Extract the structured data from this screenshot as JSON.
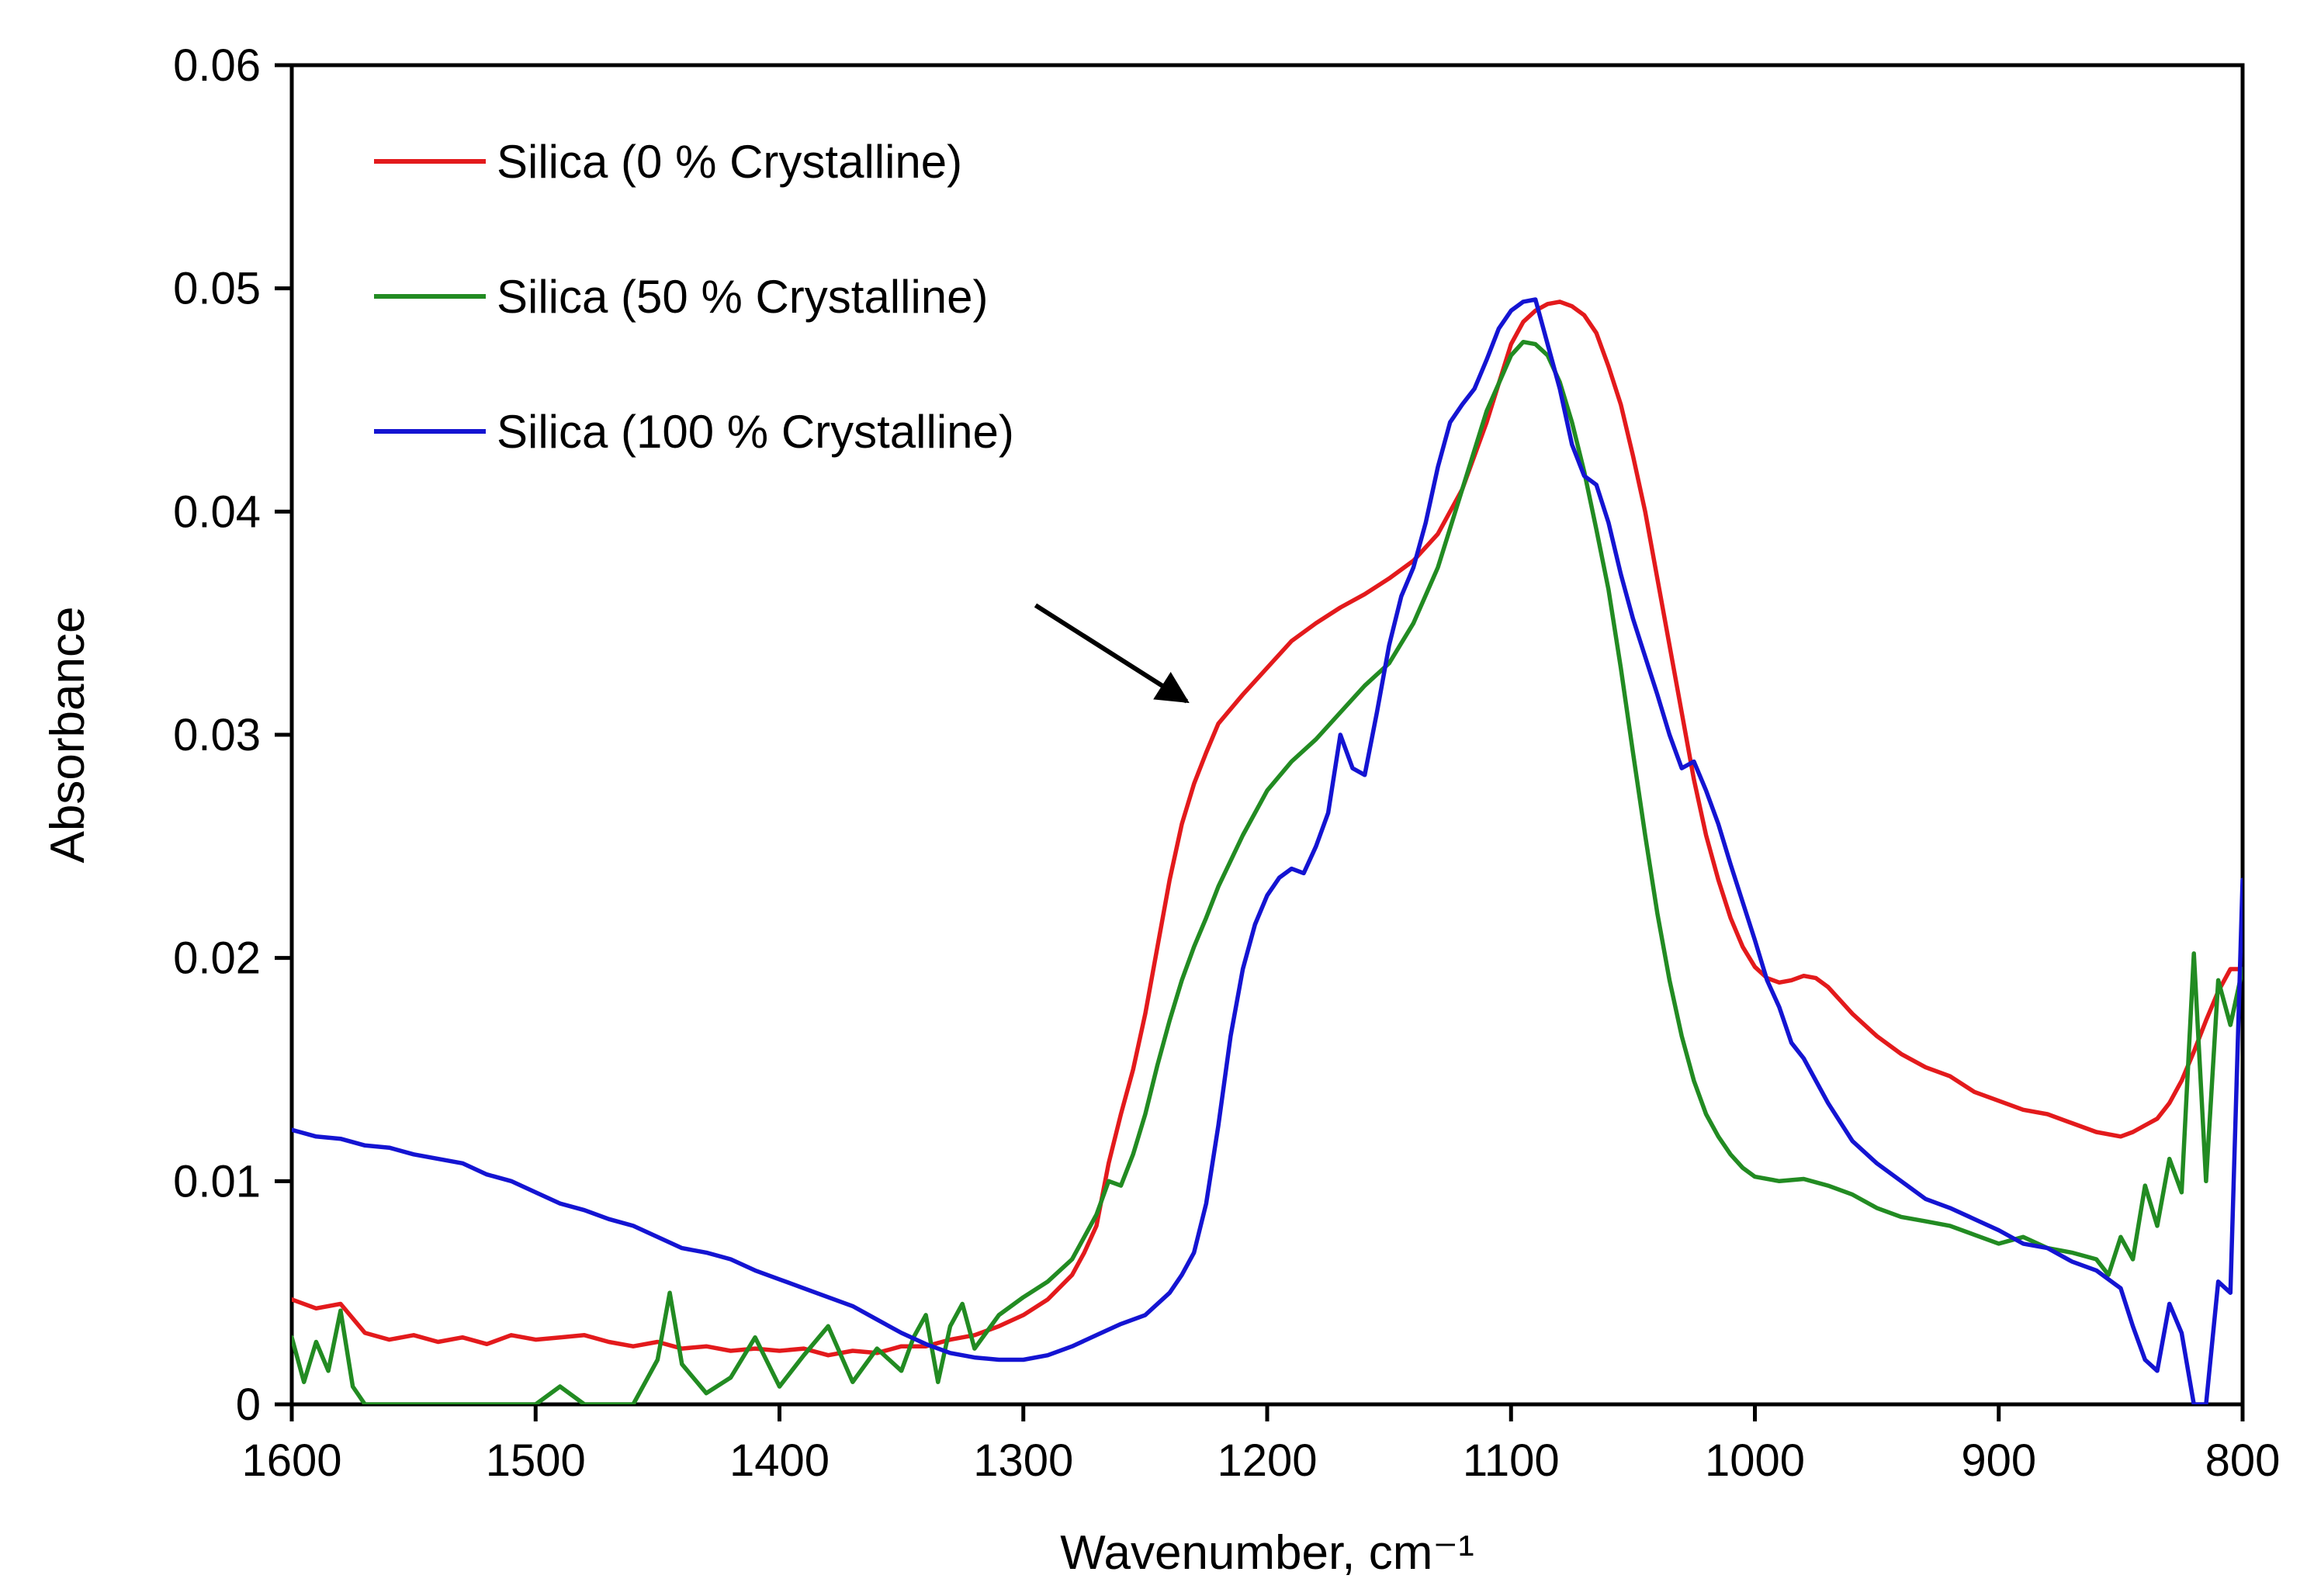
{
  "chart_data": {
    "type": "line",
    "title": "",
    "xlabel": "Wavenumber, cm⁻¹",
    "ylabel": "Absorbance",
    "xlim": [
      1600,
      800
    ],
    "ylim": [
      0,
      0.06
    ],
    "x_reversed": true,
    "x_ticks": [
      {
        "value": 1600,
        "label": "1600"
      },
      {
        "value": 1500,
        "label": "1500"
      },
      {
        "value": 1400,
        "label": "1400"
      },
      {
        "value": 1300,
        "label": "1300"
      },
      {
        "value": 1200,
        "label": "1200"
      },
      {
        "value": 1100,
        "label": "1100"
      },
      {
        "value": 1000,
        "label": "1000"
      },
      {
        "value": 900,
        "label": "900"
      },
      {
        "value": 800,
        "label": "800"
      }
    ],
    "y_ticks": [
      {
        "value": 0,
        "label": "0"
      },
      {
        "value": 0.01,
        "label": "0.01"
      },
      {
        "value": 0.02,
        "label": "0.02"
      },
      {
        "value": 0.03,
        "label": "0.03"
      },
      {
        "value": 0.04,
        "label": "0.04"
      },
      {
        "value": 0.05,
        "label": "0.05"
      },
      {
        "value": 0.06,
        "label": "0.06"
      }
    ],
    "grid": false,
    "legend_position": "top-left",
    "annotations": [
      {
        "type": "arrow",
        "from": [
          1295,
          0.0358
        ],
        "to": [
          1233,
          0.0315
        ],
        "color": "#000000"
      }
    ],
    "series": [
      {
        "name": "Silica (0 % Crystalline)",
        "color": "#e31a1c",
        "x": [
          1600,
          1590,
          1580,
          1570,
          1560,
          1550,
          1540,
          1530,
          1520,
          1510,
          1500,
          1490,
          1480,
          1470,
          1460,
          1450,
          1440,
          1430,
          1420,
          1410,
          1400,
          1390,
          1380,
          1370,
          1360,
          1350,
          1340,
          1330,
          1320,
          1310,
          1300,
          1290,
          1280,
          1275,
          1270,
          1265,
          1260,
          1255,
          1250,
          1245,
          1240,
          1235,
          1230,
          1225,
          1220,
          1210,
          1200,
          1190,
          1180,
          1170,
          1160,
          1150,
          1140,
          1130,
          1120,
          1110,
          1100,
          1095,
          1090,
          1085,
          1080,
          1075,
          1070,
          1065,
          1060,
          1055,
          1050,
          1045,
          1040,
          1035,
          1030,
          1025,
          1020,
          1015,
          1010,
          1005,
          1000,
          995,
          990,
          985,
          980,
          975,
          970,
          965,
          960,
          950,
          940,
          930,
          920,
          910,
          900,
          890,
          880,
          870,
          860,
          850,
          845,
          840,
          835,
          830,
          825,
          820,
          815,
          810,
          805,
          800
        ],
        "y": [
          0.0047,
          0.0043,
          0.0045,
          0.0032,
          0.0029,
          0.0031,
          0.0028,
          0.003,
          0.0027,
          0.0031,
          0.0029,
          0.003,
          0.0031,
          0.0028,
          0.0026,
          0.0028,
          0.0025,
          0.0026,
          0.0024,
          0.0025,
          0.0024,
          0.0025,
          0.0022,
          0.0024,
          0.0023,
          0.0026,
          0.0026,
          0.0029,
          0.0031,
          0.0035,
          0.004,
          0.0047,
          0.0058,
          0.0068,
          0.008,
          0.0108,
          0.013,
          0.015,
          0.0175,
          0.0205,
          0.0235,
          0.026,
          0.0278,
          0.0292,
          0.0305,
          0.0318,
          0.033,
          0.0342,
          0.035,
          0.0357,
          0.0363,
          0.037,
          0.0378,
          0.039,
          0.041,
          0.044,
          0.0475,
          0.0485,
          0.049,
          0.0493,
          0.0494,
          0.0492,
          0.0488,
          0.048,
          0.0465,
          0.0448,
          0.0425,
          0.04,
          0.037,
          0.034,
          0.031,
          0.028,
          0.0255,
          0.0235,
          0.0218,
          0.0205,
          0.0196,
          0.0191,
          0.0189,
          0.019,
          0.0192,
          0.0191,
          0.0187,
          0.0181,
          0.0175,
          0.0165,
          0.0157,
          0.0151,
          0.0147,
          0.014,
          0.0136,
          0.0132,
          0.013,
          0.0126,
          0.0122,
          0.012,
          0.0122,
          0.0125,
          0.0128,
          0.0135,
          0.0145,
          0.0158,
          0.0172,
          0.0185,
          0.0195,
          0.0195
        ]
      },
      {
        "name": "Silica (50 % Crystalline)",
        "color": "#228b22",
        "x": [
          1600,
          1595,
          1590,
          1585,
          1580,
          1575,
          1570,
          1560,
          1550,
          1540,
          1530,
          1520,
          1510,
          1500,
          1490,
          1480,
          1470,
          1460,
          1450,
          1445,
          1440,
          1430,
          1420,
          1410,
          1400,
          1390,
          1380,
          1370,
          1360,
          1350,
          1345,
          1340,
          1335,
          1330,
          1325,
          1320,
          1310,
          1300,
          1290,
          1280,
          1275,
          1270,
          1265,
          1260,
          1255,
          1250,
          1245,
          1240,
          1235,
          1230,
          1225,
          1220,
          1210,
          1200,
          1190,
          1180,
          1170,
          1160,
          1150,
          1140,
          1130,
          1120,
          1110,
          1100,
          1095,
          1090,
          1085,
          1080,
          1075,
          1070,
          1065,
          1060,
          1055,
          1050,
          1045,
          1040,
          1035,
          1030,
          1025,
          1020,
          1015,
          1010,
          1005,
          1000,
          990,
          980,
          970,
          960,
          950,
          940,
          930,
          920,
          910,
          900,
          890,
          880,
          870,
          860,
          855,
          850,
          845,
          840,
          835,
          830,
          825,
          820,
          815,
          810,
          805,
          800
        ],
        "y": [
          0.003,
          0.001,
          0.0028,
          0.0015,
          0.0042,
          0.0008,
          0.0,
          0.0,
          0.0,
          0.0,
          0.0,
          0.0,
          0.0,
          0.0,
          0.0008,
          0.0,
          0.0,
          0.0,
          0.002,
          0.005,
          0.0018,
          0.0005,
          0.0012,
          0.003,
          0.0008,
          0.0022,
          0.0035,
          0.001,
          0.0025,
          0.0015,
          0.003,
          0.004,
          0.001,
          0.0035,
          0.0045,
          0.0025,
          0.004,
          0.0048,
          0.0055,
          0.0065,
          0.0075,
          0.0085,
          0.01,
          0.0098,
          0.0112,
          0.013,
          0.0152,
          0.0172,
          0.019,
          0.0205,
          0.0218,
          0.0232,
          0.0255,
          0.0275,
          0.0288,
          0.0298,
          0.031,
          0.0322,
          0.0332,
          0.035,
          0.0375,
          0.041,
          0.0445,
          0.047,
          0.0476,
          0.0475,
          0.047,
          0.0458,
          0.044,
          0.0418,
          0.0392,
          0.0365,
          0.033,
          0.0292,
          0.0255,
          0.022,
          0.019,
          0.0165,
          0.0145,
          0.013,
          0.012,
          0.0112,
          0.0106,
          0.0102,
          0.01,
          0.0101,
          0.0098,
          0.0094,
          0.0088,
          0.0084,
          0.0082,
          0.008,
          0.0076,
          0.0072,
          0.0075,
          0.007,
          0.0068,
          0.0065,
          0.0058,
          0.0075,
          0.0065,
          0.0098,
          0.008,
          0.011,
          0.0095,
          0.0202,
          0.01,
          0.019,
          0.017,
          0.0195
        ]
      },
      {
        "name": "Silica (100 % Crystalline)",
        "color": "#1414d2",
        "x": [
          1600,
          1590,
          1580,
          1570,
          1560,
          1550,
          1540,
          1530,
          1520,
          1510,
          1500,
          1490,
          1480,
          1470,
          1460,
          1450,
          1440,
          1430,
          1420,
          1410,
          1400,
          1390,
          1380,
          1370,
          1360,
          1350,
          1340,
          1330,
          1320,
          1310,
          1300,
          1290,
          1280,
          1270,
          1260,
          1250,
          1240,
          1235,
          1230,
          1225,
          1220,
          1215,
          1210,
          1205,
          1200,
          1195,
          1190,
          1185,
          1180,
          1175,
          1170,
          1165,
          1160,
          1155,
          1150,
          1145,
          1140,
          1135,
          1130,
          1125,
          1120,
          1115,
          1110,
          1105,
          1100,
          1095,
          1090,
          1085,
          1080,
          1075,
          1070,
          1065,
          1060,
          1055,
          1050,
          1045,
          1040,
          1035,
          1030,
          1025,
          1020,
          1015,
          1010,
          1005,
          1000,
          995,
          990,
          985,
          980,
          970,
          960,
          950,
          940,
          930,
          920,
          910,
          900,
          890,
          880,
          870,
          860,
          850,
          845,
          840,
          835,
          830,
          825,
          820,
          815,
          810,
          805,
          800
        ],
        "y": [
          0.0123,
          0.012,
          0.0119,
          0.0116,
          0.0115,
          0.0112,
          0.011,
          0.0108,
          0.0103,
          0.01,
          0.0095,
          0.009,
          0.0087,
          0.0083,
          0.008,
          0.0075,
          0.007,
          0.0068,
          0.0065,
          0.006,
          0.0056,
          0.0052,
          0.0048,
          0.0044,
          0.0038,
          0.0032,
          0.0027,
          0.0023,
          0.0021,
          0.002,
          0.002,
          0.0022,
          0.0026,
          0.0031,
          0.0036,
          0.004,
          0.005,
          0.0058,
          0.0068,
          0.009,
          0.0125,
          0.0165,
          0.0195,
          0.0215,
          0.0228,
          0.0236,
          0.024,
          0.0238,
          0.025,
          0.0265,
          0.03,
          0.0285,
          0.0282,
          0.031,
          0.034,
          0.0362,
          0.0375,
          0.0395,
          0.042,
          0.044,
          0.0448,
          0.0455,
          0.0468,
          0.0482,
          0.049,
          0.0494,
          0.0495,
          0.0475,
          0.0455,
          0.043,
          0.0416,
          0.0412,
          0.0395,
          0.0372,
          0.0352,
          0.0335,
          0.0318,
          0.03,
          0.0285,
          0.0288,
          0.0275,
          0.026,
          0.0242,
          0.0225,
          0.0208,
          0.019,
          0.0178,
          0.0162,
          0.0155,
          0.0135,
          0.0118,
          0.0108,
          0.01,
          0.0092,
          0.0088,
          0.0083,
          0.0078,
          0.0072,
          0.007,
          0.0064,
          0.006,
          0.0052,
          0.0035,
          0.002,
          0.0015,
          0.0045,
          0.0032,
          0.0,
          0.0,
          0.0055,
          0.005,
          0.0235
        ]
      }
    ]
  }
}
